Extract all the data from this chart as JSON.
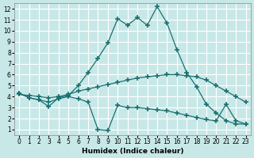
{
  "xlabel": "Humidex (Indice chaleur)",
  "background_color": "#c8e8e8",
  "grid_color": "#ffffff",
  "line_color": "#1a7070",
  "xlim": [
    -0.5,
    23.5
  ],
  "ylim": [
    0.5,
    12.5
  ],
  "xticks": [
    0,
    1,
    2,
    3,
    4,
    5,
    6,
    7,
    8,
    9,
    10,
    11,
    12,
    13,
    14,
    15,
    16,
    17,
    18,
    19,
    20,
    21,
    22,
    23
  ],
  "yticks": [
    1,
    2,
    3,
    4,
    5,
    6,
    7,
    8,
    9,
    10,
    11,
    12
  ],
  "line1_x": [
    0,
    1,
    2,
    3,
    4,
    5,
    6,
    7,
    8,
    9,
    10,
    11,
    12,
    13,
    14,
    15,
    16,
    17,
    18,
    19,
    20,
    21,
    22,
    23
  ],
  "line1_y": [
    4.3,
    3.9,
    3.7,
    3.1,
    3.9,
    4.1,
    5.0,
    6.2,
    7.5,
    8.9,
    11.1,
    10.5,
    11.2,
    10.5,
    12.2,
    10.7,
    8.3,
    6.2,
    4.9,
    3.3,
    2.5,
    1.8,
    1.5,
    1.5
  ],
  "line2_x": [
    0,
    1,
    2,
    3,
    4,
    5,
    6,
    7,
    8,
    9,
    10,
    11,
    12,
    13,
    14,
    15,
    16,
    17,
    18,
    19,
    20,
    21,
    22,
    23
  ],
  "line2_y": [
    4.2,
    4.1,
    4.0,
    3.9,
    4.0,
    4.2,
    4.5,
    4.7,
    4.9,
    5.1,
    5.3,
    5.5,
    5.7,
    5.8,
    5.9,
    6.0,
    6.0,
    5.9,
    5.8,
    5.5,
    5.0,
    4.5,
    4.0,
    3.5
  ],
  "line3_x": [
    0,
    1,
    2,
    3,
    4,
    5,
    6,
    7,
    8,
    9,
    10,
    11,
    12,
    13,
    14,
    15,
    16,
    17,
    18,
    19,
    20,
    21,
    22,
    23
  ],
  "line3_y": [
    4.3,
    3.9,
    3.7,
    3.5,
    3.8,
    4.0,
    3.8,
    3.5,
    1.0,
    0.9,
    3.2,
    3.0,
    3.0,
    2.9,
    2.8,
    2.7,
    2.5,
    2.3,
    2.1,
    1.9,
    1.8,
    3.3,
    1.8,
    1.5
  ]
}
